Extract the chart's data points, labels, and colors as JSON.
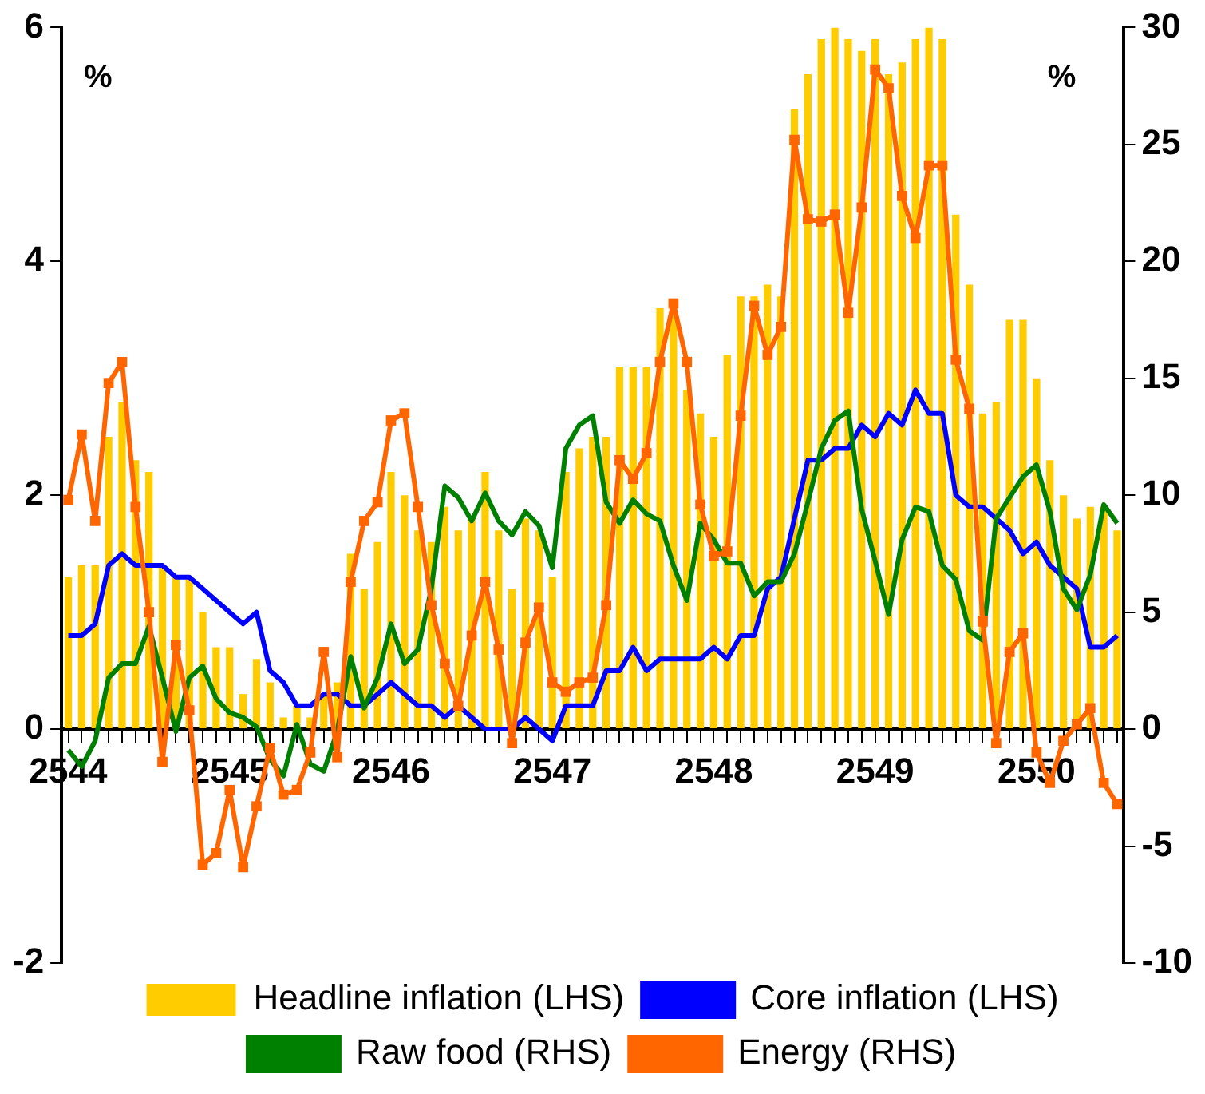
{
  "chart_data": {
    "type": "bar",
    "ylabel": "%",
    "y2label": "%",
    "categories": [
      "2544",
      null,
      null,
      null,
      null,
      null,
      null,
      null,
      null,
      null,
      null,
      null,
      "2545",
      null,
      null,
      null,
      null,
      null,
      null,
      null,
      null,
      null,
      null,
      null,
      "2546",
      null,
      null,
      null,
      null,
      null,
      null,
      null,
      null,
      null,
      null,
      null,
      "2547",
      null,
      null,
      null,
      null,
      null,
      null,
      null,
      null,
      null,
      null,
      null,
      "2548",
      null,
      null,
      null,
      null,
      null,
      null,
      null,
      null,
      null,
      null,
      null,
      "2549",
      null,
      null,
      null,
      null,
      null,
      null,
      null,
      null,
      null,
      null,
      null,
      "2550",
      null,
      null,
      null,
      null,
      null,
      null
    ],
    "series": [
      {
        "name": "Headline inflation (LHS)",
        "color": "#ffcc00",
        "values": [
          1.3,
          1.4,
          1.4,
          2.5,
          2.8,
          2.3,
          2.2,
          1.4,
          1.3,
          1.3,
          1.0,
          0.7,
          0.7,
          0.3,
          0.6,
          0.4,
          0.1,
          0.2,
          0.1,
          0.3,
          0.4,
          1.5,
          1.2,
          1.6,
          2.2,
          2.0,
          1.7,
          1.6,
          1.9,
          1.7,
          1.8,
          2.2,
          1.7,
          1.2,
          1.8,
          1.7,
          1.3,
          2.2,
          2.4,
          2.5,
          2.5,
          3.1,
          3.1,
          3.1,
          3.6,
          3.6,
          2.9,
          2.7,
          2.5,
          3.2,
          3.7,
          3.7,
          3.8,
          3.7,
          5.3,
          5.6,
          5.9,
          6.0,
          5.9,
          5.8,
          5.9,
          5.6,
          5.7,
          5.9,
          6.0,
          5.9,
          4.4,
          3.8,
          2.7,
          2.8,
          3.5,
          3.5,
          3.0,
          2.3,
          2.0,
          1.8,
          1.9,
          1.9,
          1.7
        ]
      },
      {
        "name": "Core inflation (LHS)",
        "type": "line",
        "color": "#0000ff",
        "values": [
          0.8,
          0.8,
          0.9,
          1.4,
          1.5,
          1.4,
          1.4,
          1.4,
          1.3,
          1.3,
          1.2,
          1.1,
          1.0,
          0.9,
          1.0,
          0.5,
          0.4,
          0.2,
          0.2,
          0.3,
          0.3,
          0.2,
          0.2,
          0.3,
          0.4,
          0.3,
          0.2,
          0.2,
          0.1,
          0.2,
          0.1,
          0.0,
          0.0,
          0.0,
          0.1,
          0.0,
          -0.1,
          0.2,
          0.2,
          0.2,
          0.5,
          0.5,
          0.7,
          0.5,
          0.6,
          0.6,
          0.6,
          0.6,
          0.7,
          0.6,
          0.8,
          0.8,
          1.2,
          1.3,
          1.8,
          2.3,
          2.3,
          2.4,
          2.4,
          2.6,
          2.5,
          2.7,
          2.6,
          2.9,
          2.7,
          2.7,
          2.0,
          1.9,
          1.9,
          1.8,
          1.7,
          1.5,
          1.6,
          1.4,
          1.3,
          1.2,
          0.7,
          0.7,
          0.8
        ]
      },
      {
        "name": "Raw food (RHS)",
        "type": "line",
        "axis": "y2",
        "color": "#008000",
        "values": [
          -0.9,
          -1.6,
          -0.5,
          2.2,
          2.8,
          2.8,
          4.4,
          2.2,
          -0.1,
          2.2,
          2.7,
          1.3,
          0.7,
          0.5,
          0.1,
          -1.3,
          -2.0,
          0.2,
          -1.5,
          -1.8,
          -0.1,
          3.1,
          0.9,
          2.2,
          4.5,
          2.8,
          3.4,
          6.0,
          10.4,
          9.9,
          8.9,
          10.1,
          8.9,
          8.3,
          9.3,
          8.7,
          6.9,
          12.0,
          13.0,
          13.4,
          9.7,
          8.8,
          9.8,
          9.2,
          8.9,
          7.0,
          5.5,
          8.8,
          8.1,
          7.1,
          7.1,
          5.7,
          6.3,
          6.3,
          7.5,
          9.7,
          12.0,
          13.2,
          13.6,
          9.4,
          7.2,
          4.9,
          8.1,
          9.5,
          9.3,
          7.0,
          6.4,
          4.2,
          3.8,
          9.0,
          9.9,
          10.8,
          11.3,
          9.3,
          6.0,
          5.1,
          6.6,
          9.6,
          8.8
        ]
      },
      {
        "name": "Energy (RHS)",
        "type": "line",
        "axis": "y2",
        "color": "#ff6600",
        "marker": "square",
        "values": [
          9.8,
          12.6,
          8.9,
          14.8,
          15.7,
          9.5,
          5.0,
          -1.4,
          3.6,
          0.8,
          -5.8,
          -5.3,
          -2.6,
          -5.9,
          -3.3,
          -0.8,
          -2.8,
          -2.6,
          -1.0,
          3.3,
          -1.2,
          6.3,
          8.9,
          9.7,
          13.2,
          13.5,
          9.5,
          5.3,
          2.8,
          1.0,
          4.0,
          6.3,
          3.4,
          -0.6,
          3.7,
          5.2,
          2.0,
          1.6,
          2.0,
          2.2,
          5.3,
          11.5,
          10.7,
          11.8,
          15.7,
          18.2,
          15.7,
          9.6,
          7.4,
          7.6,
          13.4,
          18.1,
          16.0,
          17.2,
          25.2,
          21.8,
          21.7,
          22.0,
          17.8,
          22.3,
          28.2,
          27.4,
          22.8,
          21.0,
          24.1,
          24.1,
          15.8,
          13.7,
          4.6,
          -0.6,
          3.3,
          4.1,
          -1.0,
          -2.3,
          -0.5,
          0.2,
          0.9,
          -2.3,
          -3.2
        ]
      }
    ],
    "ylim": [
      -2,
      6
    ],
    "yticks": [
      -2,
      0,
      2,
      4,
      6
    ],
    "y2lim": [
      -10,
      30
    ],
    "y2ticks": [
      -10,
      -5,
      0,
      5,
      10,
      15,
      20,
      25,
      30
    ],
    "marker": "none",
    "grid": false,
    "legend": "bottom"
  }
}
